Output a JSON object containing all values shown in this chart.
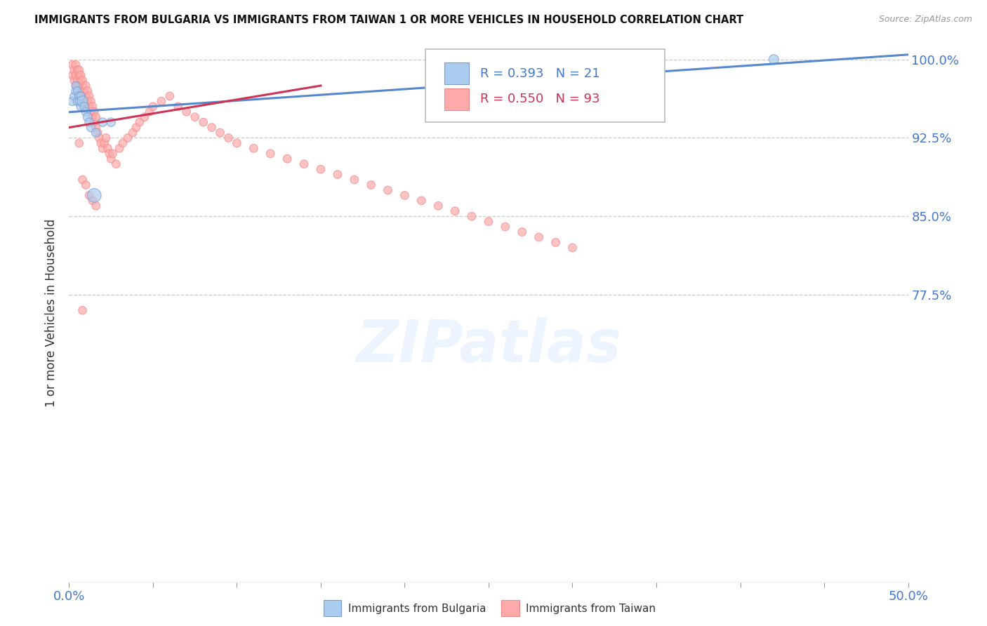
{
  "title": "IMMIGRANTS FROM BULGARIA VS IMMIGRANTS FROM TAIWAN 1 OR MORE VEHICLES IN HOUSEHOLD CORRELATION CHART",
  "source": "Source: ZipAtlas.com",
  "ylabel": "1 or more Vehicles in Household",
  "x_min": 0.0,
  "x_max": 0.5,
  "y_min": 0.5,
  "y_max": 1.015,
  "x_ticks": [
    0.0,
    0.05,
    0.1,
    0.15,
    0.2,
    0.25,
    0.3,
    0.35,
    0.4,
    0.45,
    0.5
  ],
  "y_ticks": [
    0.775,
    0.85,
    0.925,
    1.0
  ],
  "y_tick_labels": [
    "77.5%",
    "85.0%",
    "92.5%",
    "100.0%"
  ],
  "grid_color": "#cccccc",
  "background_color": "#ffffff",
  "bulgaria_color": "#aaccee",
  "taiwan_color": "#ffaaaa",
  "bulgaria_edge_color": "#7799cc",
  "taiwan_edge_color": "#ee8888",
  "bulgaria_line_color": "#5588cc",
  "taiwan_line_color": "#cc3355",
  "legend_bulgaria_R": "0.393",
  "legend_bulgaria_N": "21",
  "legend_taiwan_R": "0.550",
  "legend_taiwan_N": "93",
  "watermark_text": "ZIPatlas",
  "bulgaria_scatter_x": [
    0.002,
    0.003,
    0.004,
    0.004,
    0.005,
    0.005,
    0.006,
    0.006,
    0.007,
    0.007,
    0.008,
    0.009,
    0.01,
    0.011,
    0.012,
    0.013,
    0.015,
    0.016,
    0.02,
    0.025,
    0.42
  ],
  "bulgaria_scatter_y": [
    0.96,
    0.965,
    0.97,
    0.975,
    0.96,
    0.97,
    0.965,
    0.96,
    0.955,
    0.965,
    0.96,
    0.955,
    0.95,
    0.945,
    0.94,
    0.935,
    0.87,
    0.93,
    0.94,
    0.94,
    1.0
  ],
  "bulgaria_scatter_sizes": [
    80,
    70,
    80,
    70,
    80,
    70,
    80,
    70,
    80,
    70,
    120,
    80,
    80,
    80,
    80,
    80,
    200,
    80,
    80,
    80,
    100
  ],
  "taiwan_scatter_x": [
    0.002,
    0.002,
    0.003,
    0.003,
    0.004,
    0.004,
    0.004,
    0.005,
    0.005,
    0.005,
    0.006,
    0.006,
    0.006,
    0.007,
    0.007,
    0.007,
    0.008,
    0.008,
    0.008,
    0.009,
    0.009,
    0.01,
    0.01,
    0.01,
    0.011,
    0.011,
    0.012,
    0.012,
    0.013,
    0.013,
    0.014,
    0.014,
    0.015,
    0.015,
    0.016,
    0.016,
    0.017,
    0.018,
    0.019,
    0.02,
    0.021,
    0.022,
    0.023,
    0.024,
    0.025,
    0.026,
    0.028,
    0.03,
    0.032,
    0.035,
    0.038,
    0.04,
    0.042,
    0.045,
    0.048,
    0.05,
    0.055,
    0.06,
    0.065,
    0.07,
    0.075,
    0.08,
    0.085,
    0.09,
    0.095,
    0.1,
    0.11,
    0.12,
    0.13,
    0.14,
    0.15,
    0.16,
    0.17,
    0.18,
    0.19,
    0.2,
    0.21,
    0.22,
    0.23,
    0.24,
    0.25,
    0.26,
    0.27,
    0.28,
    0.29,
    0.3,
    0.006,
    0.008,
    0.01,
    0.012,
    0.014,
    0.016,
    0.008
  ],
  "taiwan_scatter_y": [
    0.995,
    0.985,
    0.99,
    0.98,
    0.985,
    0.975,
    0.995,
    0.98,
    0.99,
    0.975,
    0.985,
    0.975,
    0.99,
    0.98,
    0.97,
    0.985,
    0.975,
    0.965,
    0.98,
    0.97,
    0.96,
    0.965,
    0.975,
    0.955,
    0.96,
    0.97,
    0.955,
    0.965,
    0.96,
    0.95,
    0.945,
    0.955,
    0.94,
    0.95,
    0.935,
    0.945,
    0.93,
    0.925,
    0.92,
    0.915,
    0.92,
    0.925,
    0.915,
    0.91,
    0.905,
    0.91,
    0.9,
    0.915,
    0.92,
    0.925,
    0.93,
    0.935,
    0.94,
    0.945,
    0.95,
    0.955,
    0.96,
    0.965,
    0.955,
    0.95,
    0.945,
    0.94,
    0.935,
    0.93,
    0.925,
    0.92,
    0.915,
    0.91,
    0.905,
    0.9,
    0.895,
    0.89,
    0.885,
    0.88,
    0.875,
    0.87,
    0.865,
    0.86,
    0.855,
    0.85,
    0.845,
    0.84,
    0.835,
    0.83,
    0.825,
    0.82,
    0.92,
    0.885,
    0.88,
    0.87,
    0.865,
    0.86,
    0.76
  ],
  "taiwan_scatter_sizes": [
    70,
    70,
    70,
    70,
    70,
    70,
    70,
    70,
    70,
    70,
    70,
    70,
    70,
    70,
    70,
    70,
    70,
    70,
    70,
    70,
    70,
    70,
    70,
    70,
    70,
    70,
    70,
    70,
    70,
    70,
    70,
    70,
    70,
    70,
    70,
    70,
    70,
    70,
    70,
    70,
    70,
    70,
    70,
    70,
    70,
    70,
    70,
    70,
    70,
    70,
    70,
    70,
    70,
    70,
    70,
    70,
    70,
    70,
    70,
    70,
    70,
    70,
    70,
    70,
    70,
    70,
    70,
    70,
    70,
    70,
    70,
    70,
    70,
    70,
    70,
    70,
    70,
    70,
    70,
    70,
    70,
    70,
    70,
    70,
    70,
    70,
    70,
    70,
    70,
    70,
    70,
    70,
    70
  ]
}
